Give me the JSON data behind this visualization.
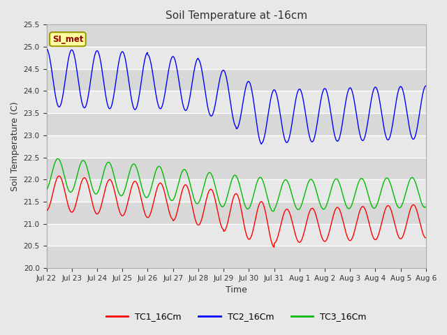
{
  "title": "Soil Temperature at -16cm",
  "xlabel": "Time",
  "ylabel": "Soil Temperature (C)",
  "ylim": [
    20.0,
    25.5
  ],
  "yticks": [
    20.0,
    20.5,
    21.0,
    21.5,
    22.0,
    22.5,
    23.0,
    23.5,
    24.0,
    24.5,
    25.0,
    25.5
  ],
  "xtick_labels": [
    "Jul 22",
    "Jul 23",
    "Jul 24",
    "Jul 25",
    "Jul 26",
    "Jul 27",
    "Jul 28",
    "Jul 29",
    "Jul 30",
    "Jul 31",
    "Aug 1",
    "Aug 2",
    "Aug 3",
    "Aug 4",
    "Aug 5",
    "Aug 6"
  ],
  "legend_labels": [
    "TC1_16Cm",
    "TC2_16Cm",
    "TC3_16Cm"
  ],
  "legend_colors": [
    "#ff0000",
    "#0000ff",
    "#00bb00"
  ],
  "annotation_text": "SI_met",
  "annotation_bg": "#ffffa0",
  "annotation_border": "#999900",
  "bg_color": "#e8e8e8",
  "plot_bg": "#e8e8e8",
  "grid_color": "#ffffff",
  "num_days": 15,
  "freq_per_day": 1.0,
  "tc2_phase": 1.5707963,
  "tc1_phase": -1.5707963,
  "tc3_phase": -1.2707963
}
